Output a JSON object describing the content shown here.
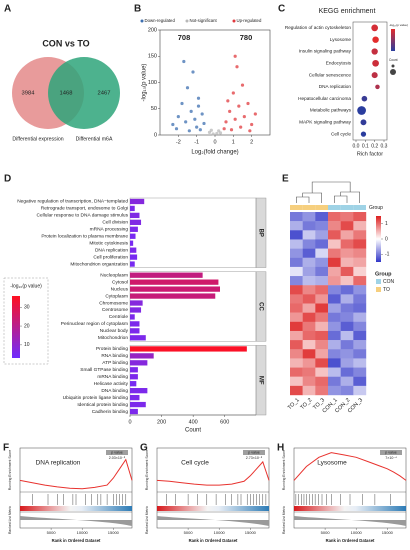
{
  "chart_data": [
    {
      "type": "venn",
      "label": "A",
      "title": "CON vs TO",
      "sets": [
        {
          "name": "Differential expression",
          "color": "#e4898a"
        },
        {
          "name": "Differential m6A",
          "color": "#2ea57a"
        }
      ],
      "values": [
        3984,
        1468,
        2467
      ]
    },
    {
      "type": "scatter",
      "label": "B",
      "xlabel": "Log₂(fold change)",
      "ylabel": "-log₁₀(p value)",
      "xlim": [
        -3,
        3
      ],
      "xticks": [
        -2,
        -1,
        0,
        1,
        2
      ],
      "ylim": [
        0,
        200
      ],
      "yticks": [
        0,
        50,
        100,
        150,
        200
      ],
      "series": [
        {
          "name": "Down-regulated",
          "color": "#3d6fb0",
          "count": 708,
          "x": [
            -2.3,
            -2.0,
            -1.8,
            -1.6,
            -1.5,
            -1.3,
            -1.2,
            -1.1,
            -1.0,
            -0.9,
            -0.8,
            -0.7,
            -1.4,
            -2.1,
            -0.6,
            -1.7,
            -0.9
          ],
          "values": [
            20,
            35,
            60,
            25,
            90,
            45,
            120,
            30,
            15,
            70,
            10,
            40,
            8,
            12,
            22,
            140,
            55
          ]
        },
        {
          "name": "Not-significant",
          "color": "#b8b8b8",
          "x": [
            -0.3,
            0.1,
            0.2,
            -0.1,
            0.3,
            -0.2
          ],
          "values": [
            5,
            3,
            8,
            2,
            4,
            9
          ]
        },
        {
          "name": "Up-regulated",
          "color": "#e0393e",
          "count": 780,
          "x": [
            0.6,
            0.8,
            0.9,
            1.0,
            1.1,
            1.2,
            1.3,
            1.4,
            1.5,
            1.6,
            1.8,
            2.0,
            2.2,
            0.7,
            1.1,
            1.9,
            0.5
          ],
          "values": [
            25,
            45,
            10,
            80,
            30,
            130,
            55,
            15,
            95,
            35,
            60,
            20,
            40,
            65,
            150,
            8,
            12
          ]
        }
      ]
    },
    {
      "type": "dot",
      "label": "C",
      "title": "KEGG enrichment",
      "xlabel": "Rich factor",
      "color_title": "-log₁₀(p value)",
      "size_title": "Count",
      "categories": [
        "Regulation of actin cytoskeleton",
        "Lysosome",
        "Insulin signaling pathway",
        "Endocytosis",
        "Cellular senescence",
        "DNA replication",
        "Hepatocellular carcinoma",
        "Metabolic pathways",
        "MAPK signaling pathway",
        "Cell cycle"
      ],
      "values": [
        0.2,
        0.21,
        0.2,
        0.21,
        0.2,
        0.23,
        0.09,
        0.06,
        0.08,
        0.08
      ],
      "sizes": [
        20,
        18,
        17,
        20,
        15,
        6,
        12,
        40,
        14,
        10
      ],
      "color_values": [
        30,
        32,
        28,
        29,
        27,
        25,
        10,
        8,
        9,
        8
      ],
      "xlim": [
        0,
        0.3
      ],
      "xticks": [
        {
          "value": 0,
          "label": "0.0"
        },
        0.1,
        0.2,
        0.3
      ]
    },
    {
      "type": "bar",
      "label": "D",
      "xlabel": "Count",
      "xlim": [
        0,
        760
      ],
      "xticks": [
        0,
        200,
        400,
        600
      ],
      "color_title": "-log₁₀(p value)",
      "color_lim": [
        3,
        36
      ],
      "color_ticks": [
        10,
        20,
        30
      ],
      "groups": [
        {
          "name": "BP",
          "categories": [
            "Negative regulation of transcription, DNA−templated",
            "Retrograde transport, endosome to Golgi",
            "Cellular response to DNA damage stimulus",
            "Cell division",
            "mRNA processing",
            "Protein localization to plasma membrane",
            "Mitotic cytokinesis",
            "DNA replication",
            "Cell proliferation",
            "Mitochondrion organization"
          ],
          "values": [
            90,
            30,
            60,
            70,
            50,
            35,
            20,
            40,
            45,
            30
          ],
          "neglogp": [
            8,
            6,
            7,
            7,
            6,
            5,
            5,
            6,
            5,
            5
          ]
        },
        {
          "name": "CC",
          "categories": [
            "Nucleoplasm",
            "Cytosol",
            "Nucleus",
            "Cytoplasm",
            "Chromosome",
            "Centrosome",
            "Centriole",
            "Perinuclear region of cytoplasm",
            "Nuclear body",
            "Mitochondrion"
          ],
          "values": [
            460,
            560,
            570,
            540,
            80,
            70,
            30,
            60,
            60,
            100
          ],
          "neglogp": [
            22,
            25,
            24,
            23,
            8,
            7,
            6,
            6,
            6,
            6
          ]
        },
        {
          "name": "MF",
          "categories": [
            "Protein binding",
            "RNA binding",
            "ATP binding",
            "Small GTPase binding",
            "mRNA binding",
            "Helicase activity",
            "DNA binding",
            "Ubiquitin protein ligase binding",
            "Identical protein binding",
            "Cadherin binding"
          ],
          "values": [
            740,
            150,
            110,
            50,
            50,
            40,
            110,
            60,
            100,
            50
          ],
          "neglogp": [
            35,
            12,
            8,
            6,
            6,
            5,
            6,
            6,
            6,
            6
          ]
        }
      ]
    },
    {
      "type": "heatmap",
      "label": "E",
      "annotation_name": "Group",
      "legend_title": "Group",
      "columns": [
        "TO_1",
        "TO_2",
        "TO_3",
        "CON_1",
        "CON_2",
        "CON_3"
      ],
      "column_groups": [
        "TO",
        "TO",
        "TO",
        "CON",
        "CON",
        "CON"
      ],
      "groups": [
        {
          "name": "CON",
          "color": "#9fd3e6"
        },
        {
          "name": "TO",
          "color": "#f6cf7e"
        }
      ],
      "color_lim": [
        -1.5,
        1.5
      ],
      "color_ticks": [
        1,
        0,
        -1
      ],
      "values": [
        [
          -1,
          -0.8,
          -1.2,
          1,
          0.9,
          1.1
        ],
        [
          -0.6,
          -1,
          -0.9,
          0.8,
          1.2,
          0.5
        ],
        [
          -1.3,
          -0.4,
          -0.7,
          1.1,
          0.6,
          0.9
        ],
        [
          -0.5,
          -0.9,
          -1.1,
          0.4,
          1,
          1.2
        ],
        [
          -0.8,
          -1.2,
          -0.3,
          0.9,
          0.7,
          0.8
        ],
        [
          -1,
          -0.6,
          -0.8,
          1.3,
          0.5,
          0.6
        ],
        [
          -0.2,
          -0.7,
          -1,
          0.6,
          1.1,
          0.3
        ],
        [
          -0.9,
          -0.5,
          -0.6,
          0.7,
          0.4,
          1
        ],
        [
          1.2,
          0.8,
          1,
          -0.9,
          -1.1,
          -0.8
        ],
        [
          0.9,
          1.1,
          0.7,
          -1.2,
          -0.6,
          -1
        ],
        [
          1,
          0.6,
          1.3,
          -0.7,
          -1,
          -1.1
        ],
        [
          0.7,
          1.2,
          0.9,
          -1,
          -0.9,
          -0.6
        ],
        [
          1.3,
          0.9,
          0.5,
          -0.8,
          -1.2,
          -0.9
        ],
        [
          0.6,
          1,
          1.1,
          -1.1,
          -0.5,
          -1.2
        ],
        [
          1.1,
          0.4,
          0.8,
          -0.6,
          -1,
          -0.7
        ],
        [
          0.8,
          1.3,
          0.6,
          -0.9,
          -0.8,
          -1
        ],
        [
          0.5,
          0.7,
          1.2,
          -1.3,
          -0.7,
          -0.5
        ],
        [
          1,
          0.9,
          0.4,
          -0.5,
          -1.1,
          -0.9
        ],
        [
          0.4,
          0.8,
          1,
          -1,
          -0.6,
          -1.2
        ],
        [
          1.2,
          0.5,
          0.9,
          -0.8,
          -0.9,
          -0.4
        ]
      ]
    },
    {
      "type": "gsea",
      "label": "F",
      "title": "DNA replication",
      "p_label": "p value",
      "p_value": "2.03×10⁻⁵",
      "ylabel": "Running Enrichment Score",
      "metric_label": "Ranked List Metric",
      "xlabel": "Rank in Ordered Dataset",
      "xlim": [
        0,
        18000
      ],
      "xticks": [
        5000,
        10000,
        15000
      ],
      "ylim": [
        -0.25,
        0.7
      ],
      "color": "#e8322e",
      "x": [
        0,
        2000,
        4000,
        6000,
        8000,
        10000,
        12000,
        14000,
        15000,
        16000,
        17000,
        18000
      ],
      "values": [
        0,
        -0.05,
        -0.1,
        -0.14,
        -0.17,
        -0.18,
        -0.15,
        -0.1,
        0.05,
        0.25,
        0.45,
        0
      ],
      "hits": [
        2000,
        4500,
        6000,
        7000,
        8500,
        9000,
        10500,
        11500,
        12500,
        13000,
        14000,
        15000,
        15500,
        16000,
        16500,
        17000
      ]
    },
    {
      "type": "gsea",
      "label": "G",
      "title": "Cell cycle",
      "p_label": "p value",
      "p_value": "2.73×10⁻⁵",
      "ylabel": "Running Enrichment Score",
      "metric_label": "Ranked List Metric",
      "xlabel": "Rank in Ordered Dataset",
      "xlim": [
        0,
        18000
      ],
      "xticks": [
        5000,
        10000,
        15000
      ],
      "ylim": [
        -0.25,
        0.7
      ],
      "color": "#e8322e",
      "x": [
        0,
        2000,
        4000,
        6000,
        8000,
        10000,
        12000,
        14000,
        15000,
        16000,
        17000,
        18000
      ],
      "values": [
        0,
        -0.02,
        -0.05,
        -0.08,
        -0.1,
        -0.1,
        -0.08,
        -0.02,
        0.1,
        0.25,
        0.4,
        0
      ],
      "hits": [
        1500,
        3000,
        5000,
        6500,
        8000,
        9500,
        11000,
        12000,
        13000,
        13500,
        14500,
        15000,
        15500,
        16000,
        16500,
        17000,
        17500
      ]
    },
    {
      "type": "gsea",
      "label": "H",
      "title": "Lysosome",
      "p_label": "p value",
      "p_value": "7×10⁻⁴",
      "ylabel": "Running Enrichment Score",
      "metric_label": "Ranked List Metric",
      "xlabel": "Rank in Ordered Dataset",
      "xlim": [
        0,
        18000
      ],
      "xticks": [
        5000,
        10000,
        15000
      ],
      "ylim": [
        -0.25,
        0.7
      ],
      "color": "#e8322e",
      "x": [
        0,
        2000,
        4000,
        6000,
        8000,
        10000,
        12000,
        14000,
        15000,
        16000,
        17000,
        18000
      ],
      "values": [
        0,
        0.3,
        0.5,
        0.6,
        0.55,
        0.5,
        0.4,
        0.3,
        0.25,
        0.18,
        0.1,
        0
      ],
      "hits": [
        300,
        700,
        1200,
        1600,
        2000,
        2500,
        3000,
        3400,
        3900,
        4500,
        5200,
        6000,
        7500,
        9000,
        11000,
        13000,
        15500
      ]
    }
  ]
}
